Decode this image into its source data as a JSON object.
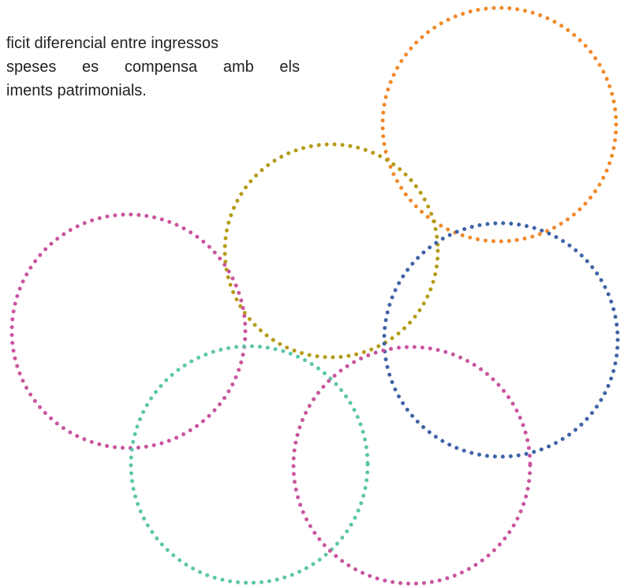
{
  "text": {
    "line1": "ficit diferencial entre ingressos",
    "line2": "speses es compensa amb els",
    "line3": "iments patrimonials."
  },
  "decoration": {
    "rings": [
      {
        "name": "orange-ring",
        "color": "#f0892a"
      },
      {
        "name": "olive-ring",
        "color": "#b59b16"
      },
      {
        "name": "magenta-ring-left",
        "color": "#c9559f"
      },
      {
        "name": "blue-ring",
        "color": "#3f63a8"
      },
      {
        "name": "teal-ring",
        "color": "#5cc6a9"
      },
      {
        "name": "magenta-ring-bottom",
        "color": "#c9559f"
      }
    ]
  }
}
